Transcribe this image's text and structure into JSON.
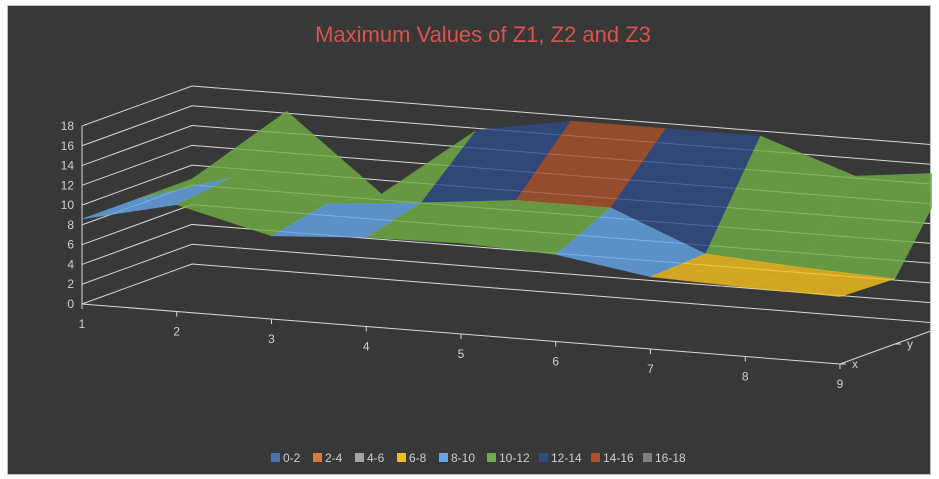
{
  "chart_data": {
    "type": "surface",
    "title": "Maximum Values of Z1, Z2 and Z3",
    "x": [
      1,
      2,
      3,
      4,
      5,
      6,
      7,
      8,
      9
    ],
    "z_range": [
      0,
      18
    ],
    "z_ticks": [
      "0",
      "2",
      "4",
      "6",
      "8",
      "10",
      "12",
      "14",
      "16",
      "18"
    ],
    "depth_series": [
      "x",
      "y",
      "z"
    ],
    "series": [
      {
        "name": "x",
        "values": [
          8.6,
          10.8,
          8.4,
          9.0,
          9.2,
          8.8,
          7.3,
          7.0,
          6.8
        ]
      },
      {
        "name": "y",
        "values": [
          8.6,
          11.5,
          9.6,
          10.5,
          11.5,
          11.5,
          7.6,
          7.0,
          6.6
        ]
      },
      {
        "name": "z",
        "values": [
          8.6,
          16.2,
          8.6,
          15.8,
          17.5,
          17.5,
          17.5,
          14.2,
          15.3
        ]
      }
    ],
    "legend_position": "bottom",
    "legend": [
      {
        "label": "0-2",
        "color": "#4a72b0"
      },
      {
        "label": "2-4",
        "color": "#e07a3a"
      },
      {
        "label": "4-6",
        "color": "#a5a5a5"
      },
      {
        "label": "6-8",
        "color": "#f3be1d"
      },
      {
        "label": "8-10",
        "color": "#63a5e6"
      },
      {
        "label": "10-12",
        "color": "#70ad47"
      },
      {
        "label": "12-14",
        "color": "#2f4a86"
      },
      {
        "label": "14-16",
        "color": "#a9502a"
      },
      {
        "label": "16-18",
        "color": "#7f7f7f"
      }
    ],
    "gridlines": true
  }
}
